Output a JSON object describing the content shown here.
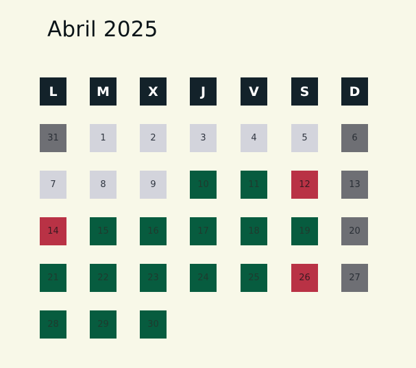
{
  "calendar": {
    "title": "Abril 2025",
    "weekday_headers": [
      "L",
      "M",
      "X",
      "J",
      "V",
      "S",
      "D"
    ],
    "weeks": [
      [
        {
          "day": "31",
          "status": "prev"
        },
        {
          "day": "1",
          "status": "weekday"
        },
        {
          "day": "2",
          "status": "weekday"
        },
        {
          "day": "3",
          "status": "weekday"
        },
        {
          "day": "4",
          "status": "weekday"
        },
        {
          "day": "5",
          "status": "weekday"
        },
        {
          "day": "6",
          "status": "weekend"
        }
      ],
      [
        {
          "day": "7",
          "status": "weekday"
        },
        {
          "day": "8",
          "status": "weekday"
        },
        {
          "day": "9",
          "status": "weekday"
        },
        {
          "day": "10",
          "status": "green"
        },
        {
          "day": "11",
          "status": "green"
        },
        {
          "day": "12",
          "status": "red"
        },
        {
          "day": "13",
          "status": "weekend"
        }
      ],
      [
        {
          "day": "14",
          "status": "red"
        },
        {
          "day": "15",
          "status": "green"
        },
        {
          "day": "16",
          "status": "green"
        },
        {
          "day": "17",
          "status": "green"
        },
        {
          "day": "18",
          "status": "green"
        },
        {
          "day": "19",
          "status": "green"
        },
        {
          "day": "20",
          "status": "weekend"
        }
      ],
      [
        {
          "day": "21",
          "status": "green"
        },
        {
          "day": "22",
          "status": "green"
        },
        {
          "day": "23",
          "status": "green"
        },
        {
          "day": "24",
          "status": "green"
        },
        {
          "day": "25",
          "status": "green"
        },
        {
          "day": "26",
          "status": "red"
        },
        {
          "day": "27",
          "status": "weekend"
        }
      ],
      [
        {
          "day": "28",
          "status": "green"
        },
        {
          "day": "29",
          "status": "green"
        },
        {
          "day": "30",
          "status": "green"
        }
      ]
    ]
  },
  "colors": {
    "background": "#f8f8e8",
    "header": "#13222a",
    "weekday": "#d3d4dc",
    "weekend": "#6e6f74",
    "green": "#075c3f",
    "red": "#b93245"
  }
}
